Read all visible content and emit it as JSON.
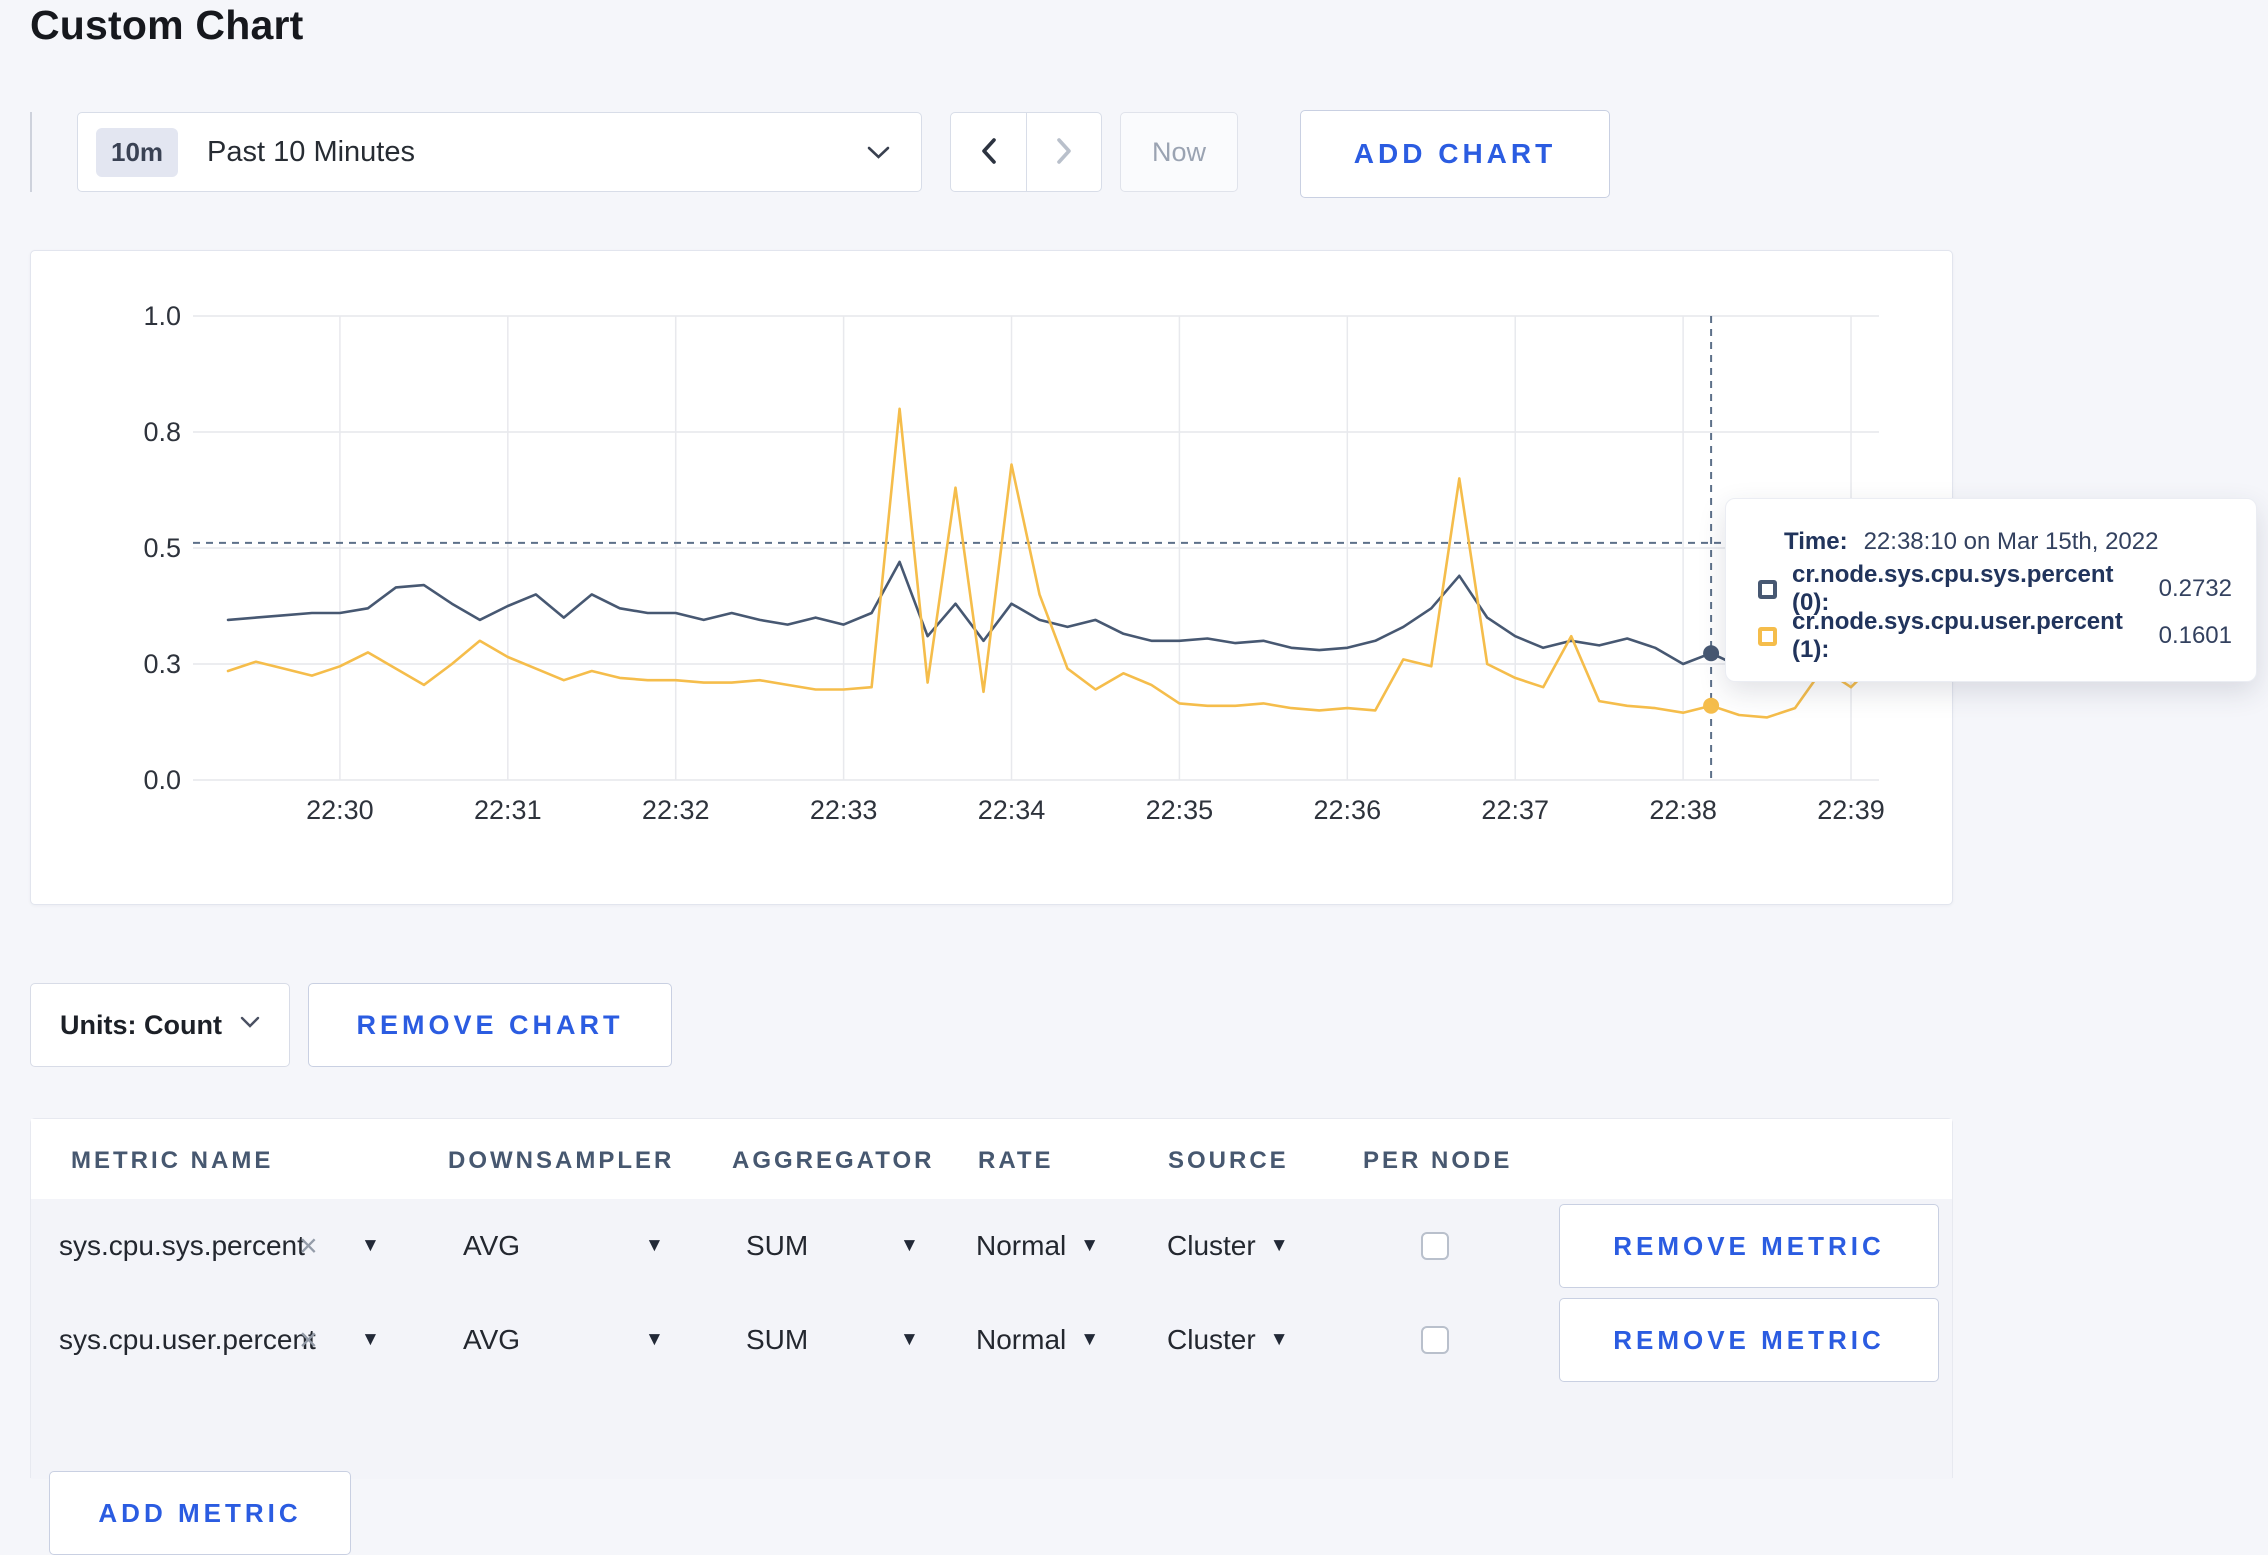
{
  "page": {
    "title": "Custom Chart",
    "background": "#f5f6fa",
    "accent_blue": "#2b5ce1"
  },
  "toolbar": {
    "range_badge": "10m",
    "range_label": "Past 10 Minutes",
    "now_label": "Now",
    "add_chart_label": "ADD CHART"
  },
  "chart_tooltip": {
    "time_label": "Time:",
    "time_value": "22:38:10 on Mar 15th, 2022",
    "rows": [
      {
        "name": "cr.node.sys.cpu.sys.percent (0):",
        "value": "0.2732"
      },
      {
        "name": "cr.node.sys.cpu.user.percent (1):",
        "value": "0.1601"
      }
    ]
  },
  "chart_data": {
    "type": "line",
    "title": "",
    "xlabel": "",
    "ylabel": "",
    "x_window": [
      "22:29:10",
      "22:39:10"
    ],
    "sample_interval_seconds": 10,
    "x_tick_labels": [
      "22:30",
      "22:31",
      "22:32",
      "22:33",
      "22:34",
      "22:35",
      "22:36",
      "22:37",
      "22:38",
      "22:39"
    ],
    "y_tick_values": [
      0,
      0.25,
      0.5,
      0.75,
      1.0
    ],
    "y_tick_labels": [
      "0.0",
      "0.3",
      "0.5",
      "0.8",
      "1.0"
    ],
    "ylim": [
      0,
      1
    ],
    "grid": true,
    "legend_position": "tooltip",
    "crosshair": {
      "time": "22:38:10",
      "seconds": 540,
      "index": 53,
      "h_value": 0.511
    },
    "series": [
      {
        "name": "cr.node.sys.cpu.sys.percent",
        "node": "(0)",
        "color": "#475872",
        "values": [
          0.345,
          0.35,
          0.355,
          0.36,
          0.36,
          0.37,
          0.415,
          0.42,
          0.38,
          0.345,
          0.375,
          0.4,
          0.35,
          0.4,
          0.37,
          0.36,
          0.36,
          0.345,
          0.36,
          0.345,
          0.335,
          0.35,
          0.335,
          0.36,
          0.47,
          0.31,
          0.38,
          0.3,
          0.38,
          0.345,
          0.33,
          0.345,
          0.315,
          0.3,
          0.3,
          0.305,
          0.295,
          0.3,
          0.285,
          0.28,
          0.285,
          0.3,
          0.33,
          0.37,
          0.44,
          0.35,
          0.31,
          0.285,
          0.3,
          0.29,
          0.305,
          0.285,
          0.25,
          0.2732,
          0.245,
          0.26,
          0.275,
          0.28,
          0.27,
          0.28
        ]
      },
      {
        "name": "cr.node.sys.cpu.user.percent",
        "node": "(1)",
        "color": "#f5bd4b",
        "values": [
          0.235,
          0.255,
          0.24,
          0.225,
          0.245,
          0.275,
          0.24,
          0.205,
          0.25,
          0.3,
          0.265,
          0.24,
          0.215,
          0.235,
          0.22,
          0.215,
          0.215,
          0.21,
          0.21,
          0.215,
          0.205,
          0.195,
          0.195,
          0.2,
          0.8,
          0.21,
          0.63,
          0.19,
          0.68,
          0.4,
          0.24,
          0.195,
          0.23,
          0.205,
          0.165,
          0.16,
          0.16,
          0.165,
          0.155,
          0.15,
          0.155,
          0.15,
          0.26,
          0.245,
          0.65,
          0.25,
          0.22,
          0.2,
          0.31,
          0.17,
          0.16,
          0.155,
          0.145,
          0.1601,
          0.14,
          0.135,
          0.155,
          0.24,
          0.2,
          0.26
        ]
      }
    ]
  },
  "units_row": {
    "units_label": "Units: Count",
    "remove_chart_label": "REMOVE CHART"
  },
  "metrics_table": {
    "headers": [
      "METRIC NAME",
      "DOWNSAMPLER",
      "AGGREGATOR",
      "RATE",
      "SOURCE",
      "PER NODE"
    ],
    "remove_metric_label": "REMOVE METRIC",
    "add_metric_label": "ADD METRIC",
    "rows": [
      {
        "metric": "sys.cpu.sys.percent",
        "downsampler": "AVG",
        "aggregator": "SUM",
        "rate": "Normal",
        "source": "Cluster",
        "per_node": false
      },
      {
        "metric": "sys.cpu.user.percent",
        "downsampler": "AVG",
        "aggregator": "SUM",
        "rate": "Normal",
        "source": "Cluster",
        "per_node": false
      }
    ]
  }
}
